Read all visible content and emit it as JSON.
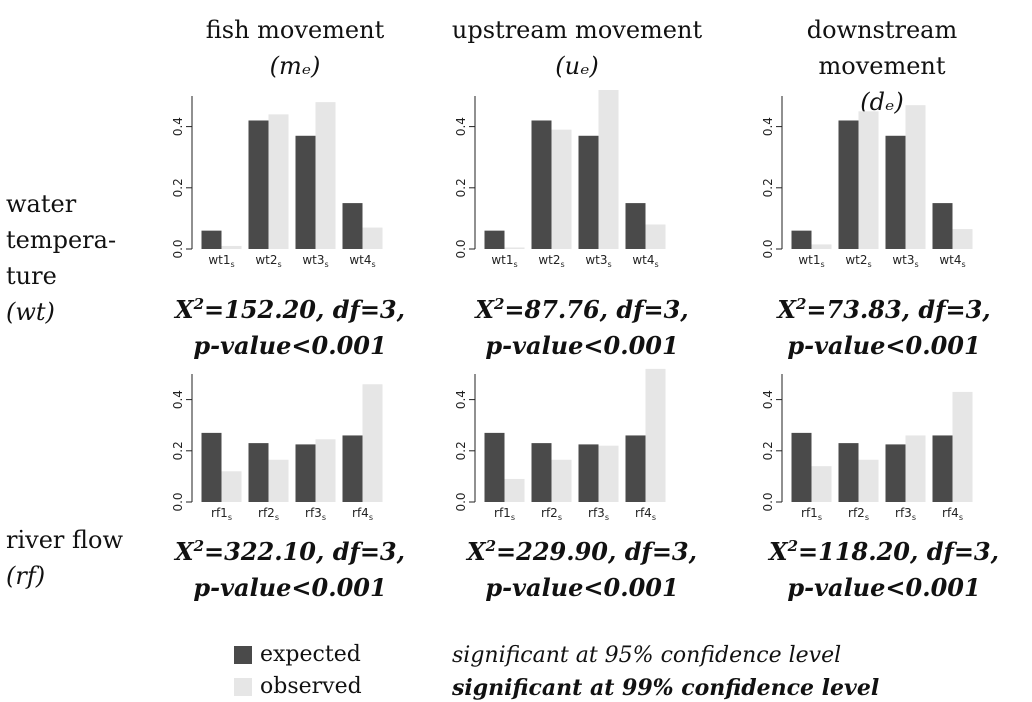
{
  "columns": [
    {
      "title": "fish movement",
      "symbol": "(mₑ)"
    },
    {
      "title": "upstream movement",
      "symbol": "(uₑ)"
    },
    {
      "title": "downstream movement",
      "symbol": "(dₑ)"
    }
  ],
  "rows": [
    {
      "label_lines": [
        "water",
        "tempera-",
        "ture",
        "(wt)"
      ]
    },
    {
      "label_lines": [
        "river flow",
        "(rf)"
      ]
    }
  ],
  "stats": [
    [
      "X",
      "2",
      "=152.20, df=3,",
      "p-value<0.001"
    ],
    [
      "X",
      "2",
      "=87.76, df=3,",
      "p-value<0.001"
    ],
    [
      "X",
      "2",
      "=73.83, df=3,",
      "p-value<0.001"
    ],
    [
      "X",
      "2",
      "=322.10, df=3,",
      "p-value<0.001"
    ],
    [
      "X",
      "2",
      "=229.90, df=3,",
      "p-value<0.001"
    ],
    [
      "X",
      "2",
      "=118.20, df=3,",
      "p-value<0.001"
    ]
  ],
  "legend": {
    "expected": "expected",
    "observed": "observed"
  },
  "notes": {
    "sig95": "significant at 95% confidence level",
    "sig99": "significant at 99% confidence level"
  },
  "colors": {
    "expected": "#4a4a4a",
    "observed": "#e6e6e6",
    "axis": "#222222"
  },
  "chart_data": [
    {
      "type": "bar",
      "row": "wt",
      "column": "fish movement",
      "categories": [
        "wt1",
        "wt2",
        "wt3",
        "wt4"
      ],
      "category_subscript": "s",
      "ylim": [
        0,
        0.5
      ],
      "yticks": [
        "0.0",
        "0.2",
        "0.4"
      ],
      "series": [
        {
          "name": "expected",
          "values": [
            0.06,
            0.42,
            0.37,
            0.15
          ]
        },
        {
          "name": "observed",
          "values": [
            0.01,
            0.44,
            0.48,
            0.07
          ]
        }
      ]
    },
    {
      "type": "bar",
      "row": "wt",
      "column": "upstream movement",
      "categories": [
        "wt1",
        "wt2",
        "wt3",
        "wt4"
      ],
      "category_subscript": "s",
      "ylim": [
        0,
        0.5
      ],
      "yticks": [
        "0.0",
        "0.2",
        "0.4"
      ],
      "series": [
        {
          "name": "expected",
          "values": [
            0.06,
            0.42,
            0.37,
            0.15
          ]
        },
        {
          "name": "observed",
          "values": [
            0.005,
            0.39,
            0.52,
            0.08
          ]
        }
      ]
    },
    {
      "type": "bar",
      "row": "wt",
      "column": "downstream movement",
      "categories": [
        "wt1",
        "wt2",
        "wt3",
        "wt4"
      ],
      "category_subscript": "s",
      "ylim": [
        0,
        0.5
      ],
      "yticks": [
        "0.0",
        "0.2",
        "0.4"
      ],
      "series": [
        {
          "name": "expected",
          "values": [
            0.06,
            0.42,
            0.37,
            0.15
          ]
        },
        {
          "name": "observed",
          "values": [
            0.015,
            0.45,
            0.47,
            0.065
          ]
        }
      ]
    },
    {
      "type": "bar",
      "row": "rf",
      "column": "fish movement",
      "categories": [
        "rf1",
        "rf2",
        "rf3",
        "rf4"
      ],
      "category_subscript": "s",
      "ylim": [
        0,
        0.5
      ],
      "yticks": [
        "0.0",
        "0.2",
        "0.4"
      ],
      "series": [
        {
          "name": "expected",
          "values": [
            0.27,
            0.23,
            0.225,
            0.26
          ]
        },
        {
          "name": "observed",
          "values": [
            0.12,
            0.165,
            0.245,
            0.46
          ]
        }
      ]
    },
    {
      "type": "bar",
      "row": "rf",
      "column": "upstream movement",
      "categories": [
        "rf1",
        "rf2",
        "rf3",
        "rf4"
      ],
      "category_subscript": "s",
      "ylim": [
        0,
        0.5
      ],
      "yticks": [
        "0.0",
        "0.2",
        "0.4"
      ],
      "series": [
        {
          "name": "expected",
          "values": [
            0.27,
            0.23,
            0.225,
            0.26
          ]
        },
        {
          "name": "observed",
          "values": [
            0.09,
            0.165,
            0.22,
            0.52
          ]
        }
      ]
    },
    {
      "type": "bar",
      "row": "rf",
      "column": "downstream movement",
      "categories": [
        "rf1",
        "rf2",
        "rf3",
        "rf4"
      ],
      "category_subscript": "s",
      "ylim": [
        0,
        0.5
      ],
      "yticks": [
        "0.0",
        "0.2",
        "0.4"
      ],
      "series": [
        {
          "name": "expected",
          "values": [
            0.27,
            0.23,
            0.225,
            0.26
          ]
        },
        {
          "name": "observed",
          "values": [
            0.14,
            0.165,
            0.26,
            0.43
          ]
        }
      ]
    }
  ]
}
